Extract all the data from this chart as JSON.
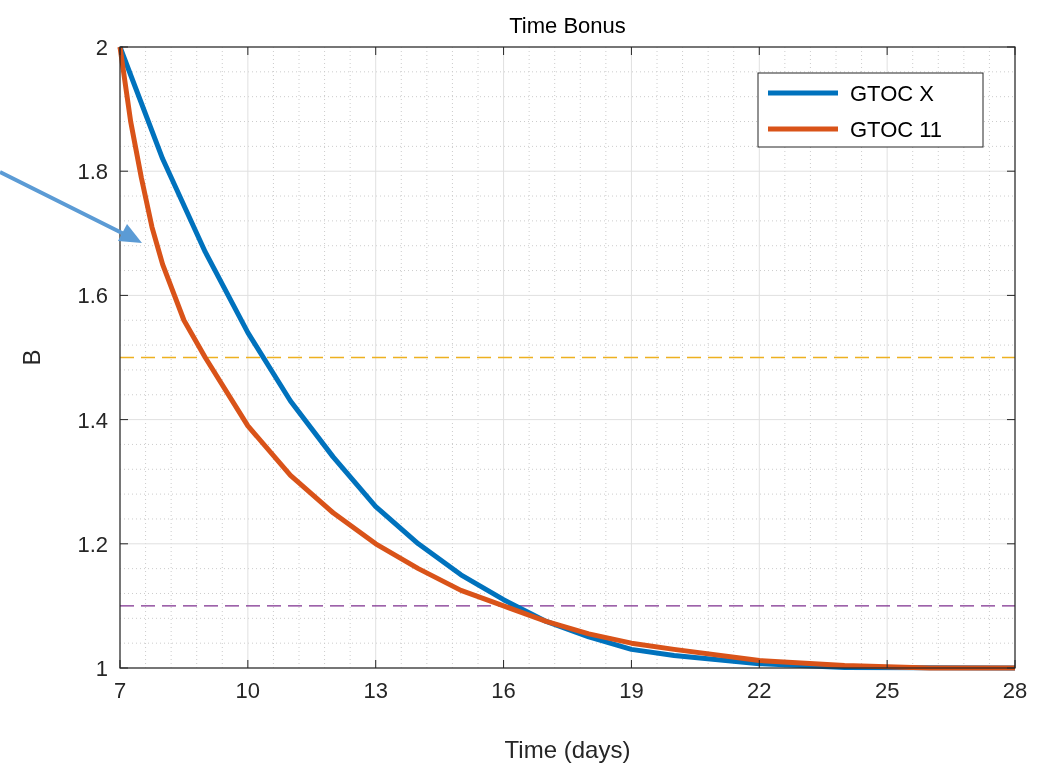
{
  "chart_data": {
    "type": "line",
    "title": "Time Bonus",
    "xlabel": "Time (days)",
    "ylabel": "B",
    "xlim": [
      7,
      28
    ],
    "xticks": [
      7,
      10,
      13,
      16,
      19,
      22,
      25,
      28
    ],
    "ylim": [
      1,
      2
    ],
    "yticks": [
      1,
      1.2,
      1.4,
      1.6,
      1.8,
      2
    ],
    "grid": true,
    "legend": "top right",
    "line_style": "solid",
    "marker": "none",
    "series": [
      {
        "name": "GTOC X",
        "color": "#0072bd",
        "x": [
          7,
          8,
          9,
          10,
          11,
          12,
          13,
          14,
          15,
          16,
          17,
          18,
          19,
          20,
          22,
          24,
          26,
          28
        ],
        "values": [
          2,
          1.82,
          1.67,
          1.54,
          1.43,
          1.34,
          1.26,
          1.2,
          1.15,
          1.11,
          1.075,
          1.05,
          1.03,
          1.02,
          1.007,
          1.001,
          null,
          1
        ]
      },
      {
        "name": "GTOC 11",
        "color": "#d95319",
        "x": [
          7,
          7.25,
          7.5,
          7.75,
          8,
          8.5,
          9,
          10,
          11,
          12,
          13,
          14,
          15,
          16,
          17,
          18,
          19,
          20,
          22,
          24,
          26,
          28
        ],
        "values": [
          2,
          1.88,
          1.79,
          1.71,
          1.65,
          1.56,
          1.5,
          1.39,
          1.31,
          1.25,
          1.2,
          1.16,
          1.125,
          1.1,
          1.075,
          1.055,
          1.04,
          1.03,
          1.012,
          1.004,
          1,
          1
        ]
      }
    ],
    "ref_lines": [
      {
        "axis": "y",
        "value": 1.5,
        "color": "#edb120",
        "line_style": "dashed"
      },
      {
        "axis": "y",
        "value": 1.1,
        "color": "#7e2f8e",
        "line_style": "dashed"
      }
    ]
  }
}
